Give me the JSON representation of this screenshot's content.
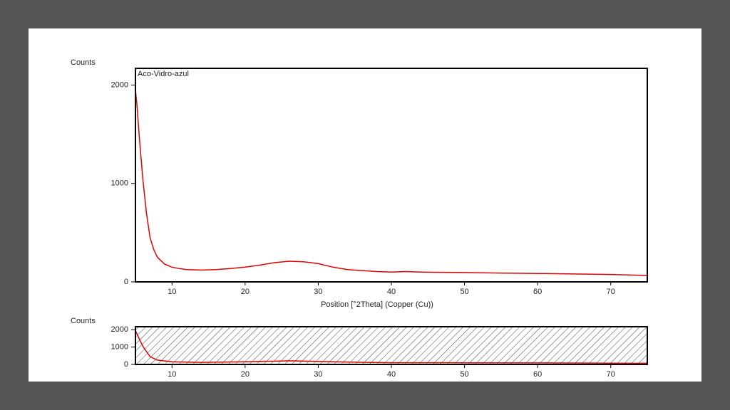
{
  "chart_data": [
    {
      "type": "line",
      "ylabel": "Counts",
      "xlabel": "Position [°2Theta] (Copper (Cu))",
      "x": [
        5,
        5.2,
        5.5,
        6,
        6.5,
        7,
        7.5,
        8,
        9,
        10,
        11,
        12,
        14,
        16,
        18,
        20,
        22,
        24,
        26,
        28,
        30,
        32,
        34,
        36,
        38,
        40,
        42,
        44,
        46,
        50,
        55,
        60,
        65,
        70,
        75
      ],
      "series": [
        {
          "name": "Aco-Vidro-azul",
          "color": "#e00000",
          "values": [
            1950,
            1800,
            1500,
            1050,
            700,
            450,
            330,
            250,
            180,
            150,
            135,
            125,
            120,
            125,
            135,
            150,
            170,
            195,
            210,
            205,
            185,
            150,
            125,
            115,
            105,
            100,
            105,
            100,
            98,
            95,
            90,
            85,
            80,
            75,
            65
          ]
        }
      ],
      "xlim": [
        5,
        75
      ],
      "ylim": [
        0,
        2170
      ],
      "xticks": [
        10,
        20,
        30,
        40,
        50,
        60,
        70
      ],
      "yticks": [
        0,
        1000,
        2000
      ]
    },
    {
      "type": "line",
      "ylabel": "Counts",
      "x": [
        5,
        5.5,
        6,
        7,
        8,
        10,
        14,
        20,
        26,
        32,
        40,
        50,
        60,
        70,
        75
      ],
      "series": [
        {
          "color": "#e00000",
          "values": [
            1950,
            1500,
            1050,
            450,
            250,
            150,
            120,
            150,
            210,
            150,
            100,
            95,
            85,
            75,
            65
          ]
        }
      ],
      "xlim": [
        5,
        75
      ],
      "ylim": [
        0,
        2170
      ],
      "xticks": [
        10,
        20,
        30,
        40,
        50,
        60,
        70
      ],
      "yticks": [
        0,
        1000,
        2000
      ]
    }
  ]
}
